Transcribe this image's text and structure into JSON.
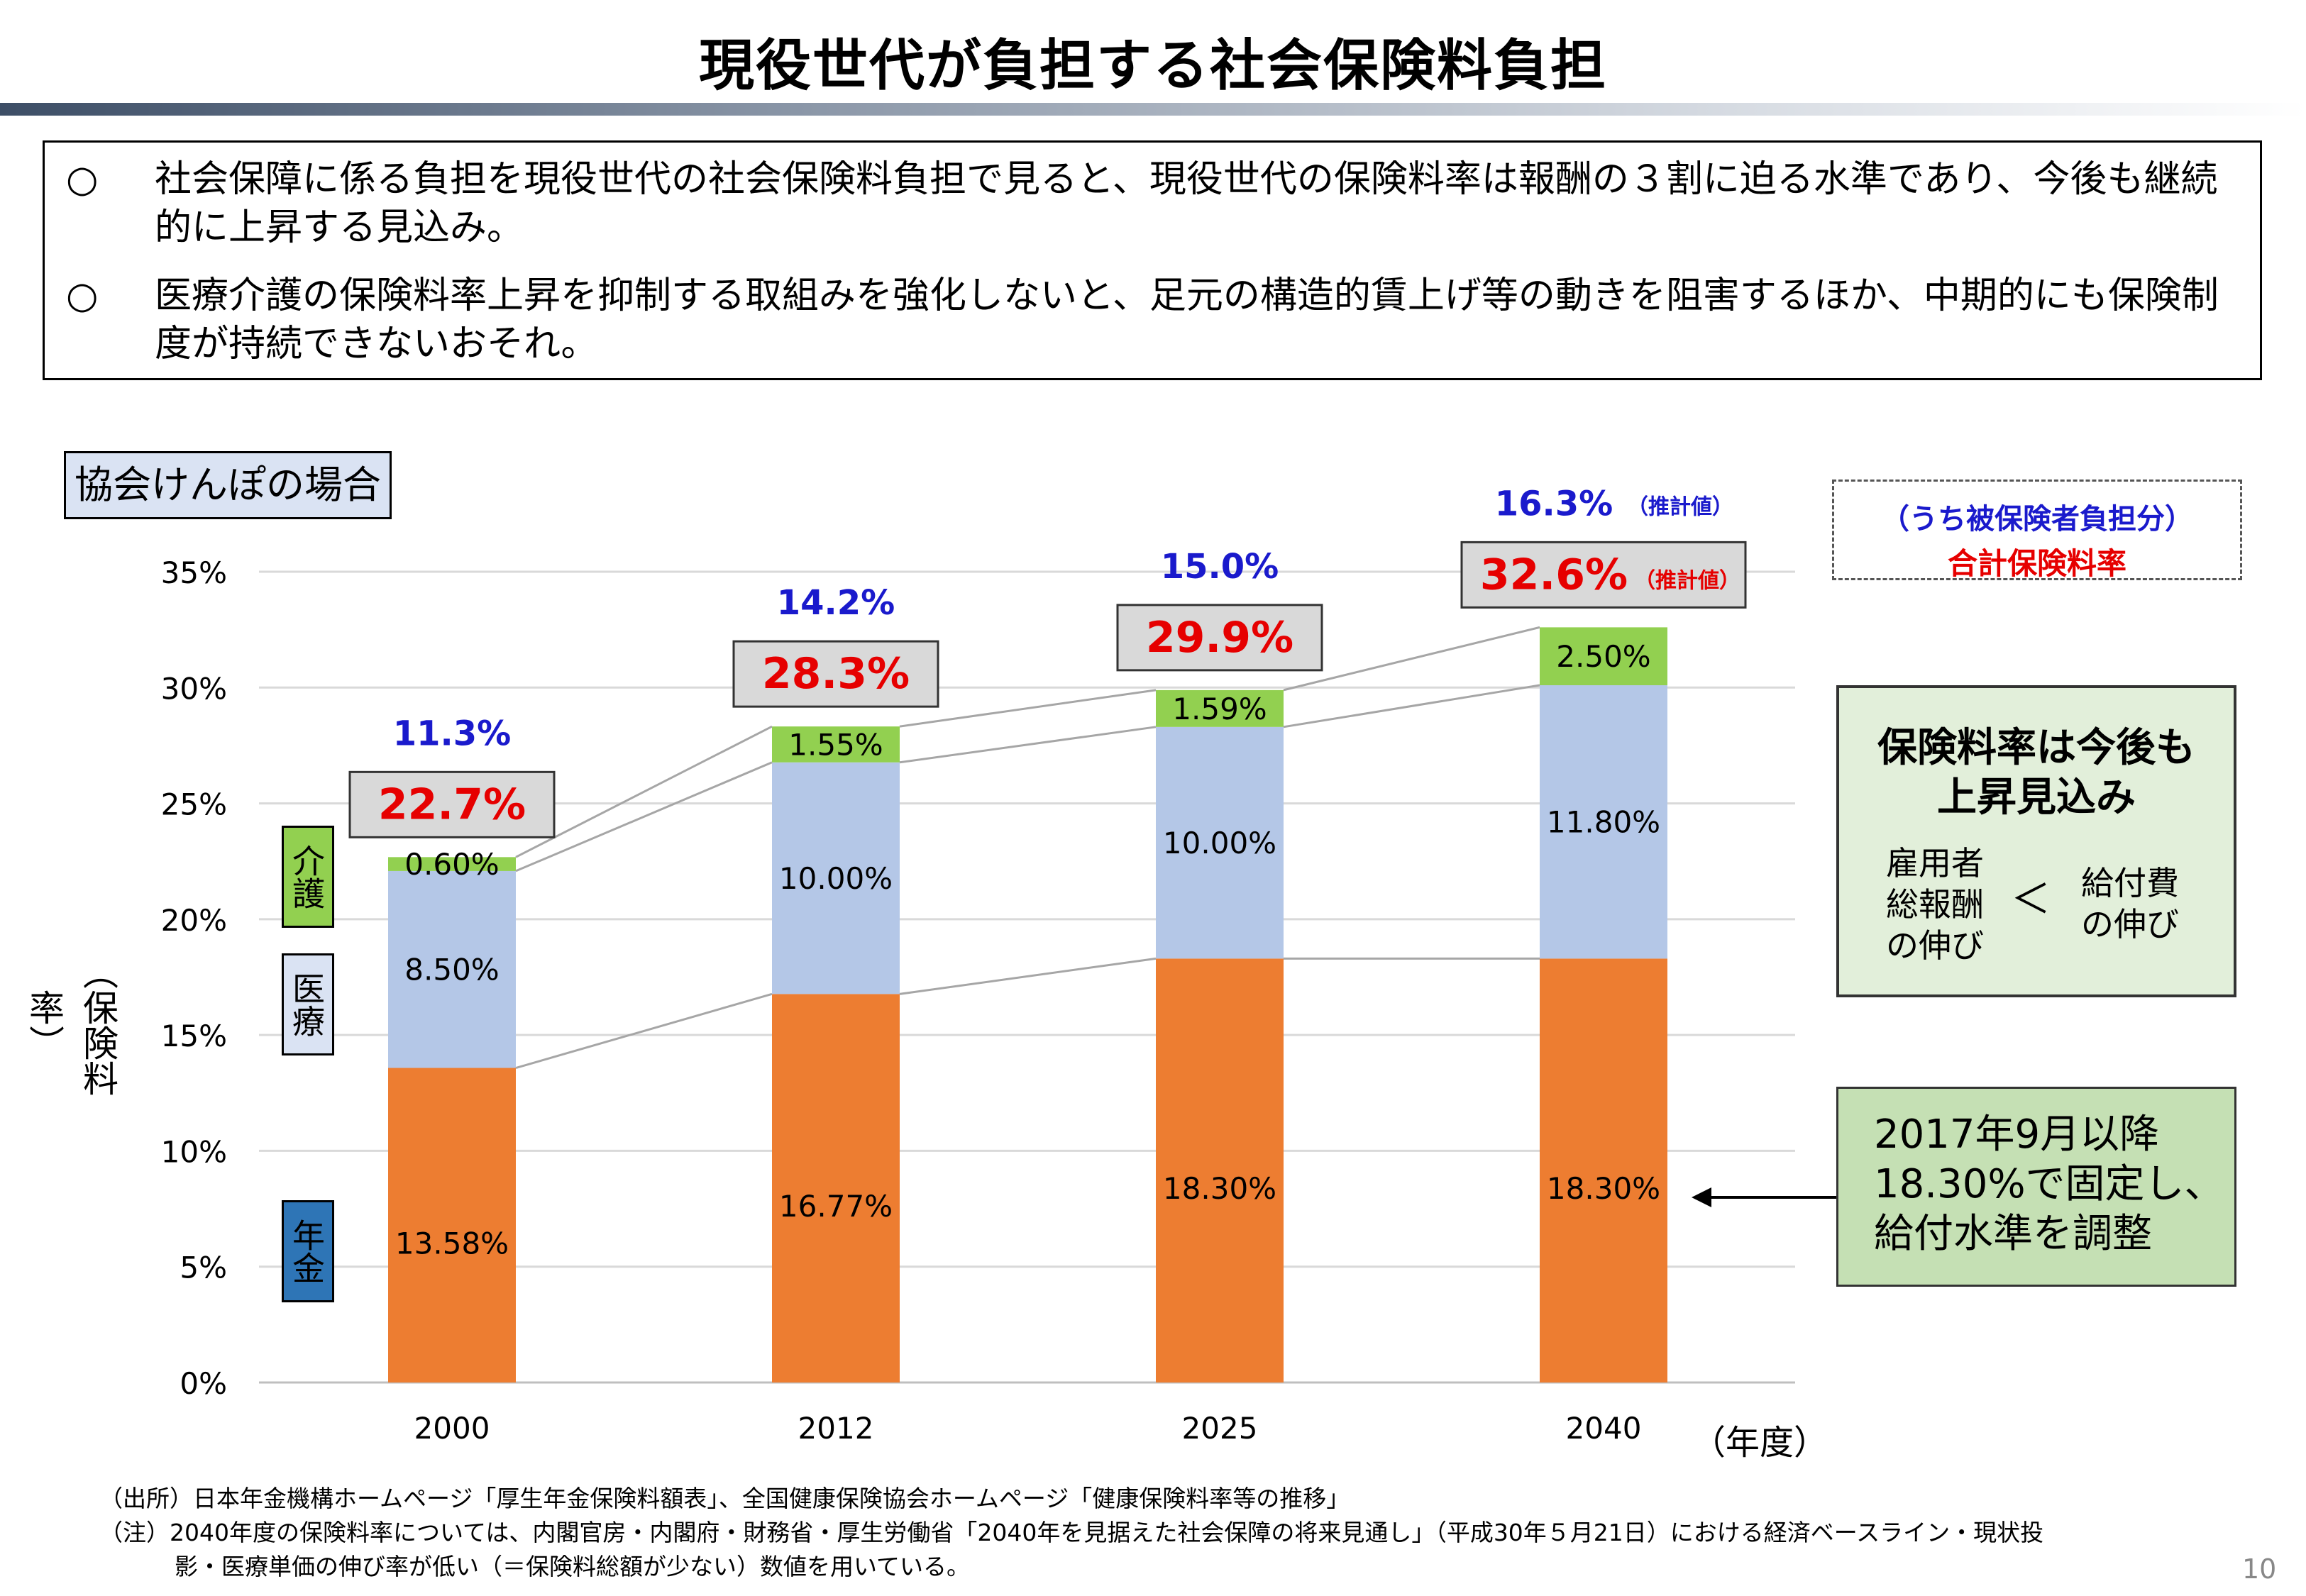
{
  "page": {
    "title": "現役世代が負担する社会保険料負担",
    "page_number": "10",
    "bullets": [
      {
        "mark": "○",
        "text": "社会保障に係る負担を現役世代の社会保険料負担で見ると、現役世代の保険料率は報酬の３割に迫る水準であり、今後も継続的に上昇する見込み。"
      },
      {
        "mark": "○",
        "text": "医療介護の保険料率上昇を抑制する取組みを強化しないと、足元の構造的賃上げ等の動きを阻害するほか、中期的にも保険制度が持続できないおそれ。"
      }
    ],
    "chart_label": "協会けんぽの場合",
    "legend_box": {
      "line1": "（うち被保険者負担分）",
      "line2": "合計保険料率",
      "line1_color": "#1a1acc",
      "line2_color": "#e60000"
    },
    "category_tags": {
      "kaigo": "介護",
      "iryo": "医療",
      "nenkin": "年金"
    },
    "side_box1": {
      "title1": "保険料率は今後も",
      "title2": "上昇見込み",
      "left1": "雇用者",
      "left2": "総報酬",
      "left3": "の伸び",
      "symbol": "＜",
      "right1": "給付費",
      "right2": "の伸び"
    },
    "side_box2": {
      "line1": "2017年9月以降",
      "line2": "18.30%で固定し、",
      "line3": "給付水準を調整"
    },
    "notes": {
      "source": "（出所）日本年金機構ホームページ「厚生年金保険料額表」、全国健康保険協会ホームページ「健康保険料率等の推移」",
      "note1": "（注）2040年度の保険料率については、内閣官房・内閣府・財務省・厚生労働省「2040年を見据えた社会保障の将来見通し」（平成30年５月21日）における経済ベースライン・現状投",
      "note2": "影・医療単価の伸び率が低い（＝保険料総額が少ない）数値を用いている。"
    },
    "colors": {
      "pension": "#ed7d31",
      "medical": "#b4c7e7",
      "care": "#92d050",
      "pension_tag": "#2e75b6",
      "medical_tag": "#dae3f3",
      "care_tag": "#92d050",
      "side_green": "#e2efda",
      "side_green2": "#c5e0b4",
      "total_box": "#d9d9d9"
    }
  },
  "chart_data": {
    "type": "bar",
    "stacked": true,
    "categories": [
      "2000",
      "2012",
      "2025",
      "2040"
    ],
    "xlabel": "（年度）",
    "ylabel": "（保険料率）",
    "ylim": [
      0,
      35
    ],
    "yticks": [
      "0%",
      "5%",
      "10%",
      "15%",
      "20%",
      "25%",
      "30%",
      "35%"
    ],
    "grid": true,
    "series": [
      {
        "key": "pension",
        "values": [
          13.58,
          16.77,
          18.3,
          18.3
        ],
        "labels": [
          "13.58%",
          "16.77%",
          "18.30%",
          "18.30%"
        ]
      },
      {
        "key": "medical",
        "values": [
          8.5,
          10.0,
          10.0,
          11.8
        ],
        "labels": [
          "8.50%",
          "10.00%",
          "10.00%",
          "11.80%"
        ]
      },
      {
        "key": "care",
        "values": [
          0.6,
          1.55,
          1.59,
          2.5
        ],
        "labels": [
          "0.60%",
          "1.55%",
          "1.59%",
          "2.50%"
        ]
      }
    ],
    "totals": [
      "22.7%",
      "28.3%",
      "29.9%",
      "32.6%"
    ],
    "insured_share": [
      "11.3%",
      "14.2%",
      "15.0%",
      "16.3%"
    ],
    "estimate_marks": [
      "",
      "",
      "",
      "（推計値）"
    ]
  }
}
